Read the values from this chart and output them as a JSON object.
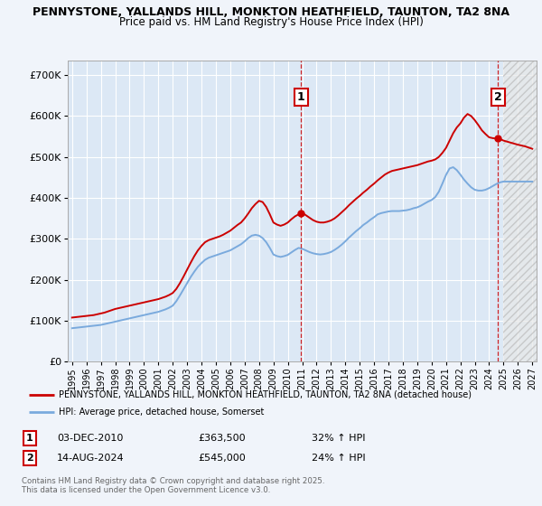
{
  "title1": "PENNYSTONE, YALLANDS HILL, MONKTON HEATHFIELD, TAUNTON, TA2 8NA",
  "title2": "Price paid vs. HM Land Registry's House Price Index (HPI)",
  "background_color": "#f0f4fa",
  "plot_bg_color": "#dce8f5",
  "grid_color": "#ffffff",
  "red_line_color": "#cc0000",
  "blue_line_color": "#7aaadd",
  "marker1_x": 2010.92,
  "marker2_x": 2024.62,
  "marker1_val_red": 363500,
  "marker2_val_red": 545000,
  "marker1_label": "1",
  "marker2_label": "2",
  "marker1_date": "03-DEC-2010",
  "marker1_price": "£363,500",
  "marker1_hpi": "32% ↑ HPI",
  "marker2_date": "14-AUG-2024",
  "marker2_price": "£545,000",
  "marker2_hpi": "24% ↑ HPI",
  "legend_red": "PENNYSTONE, YALLANDS HILL, MONKTON HEATHFIELD, TAUNTON, TA2 8NA (detached house)",
  "legend_blue": "HPI: Average price, detached house, Somerset",
  "footer": "Contains HM Land Registry data © Crown copyright and database right 2025.\nThis data is licensed under the Open Government Licence v3.0.",
  "ylim": [
    0,
    735000
  ],
  "yticks": [
    0,
    100000,
    200000,
    300000,
    400000,
    500000,
    600000,
    700000
  ],
  "xlim_start": 1994.7,
  "xlim_end": 2027.3,
  "hatch_start": 2025.0
}
